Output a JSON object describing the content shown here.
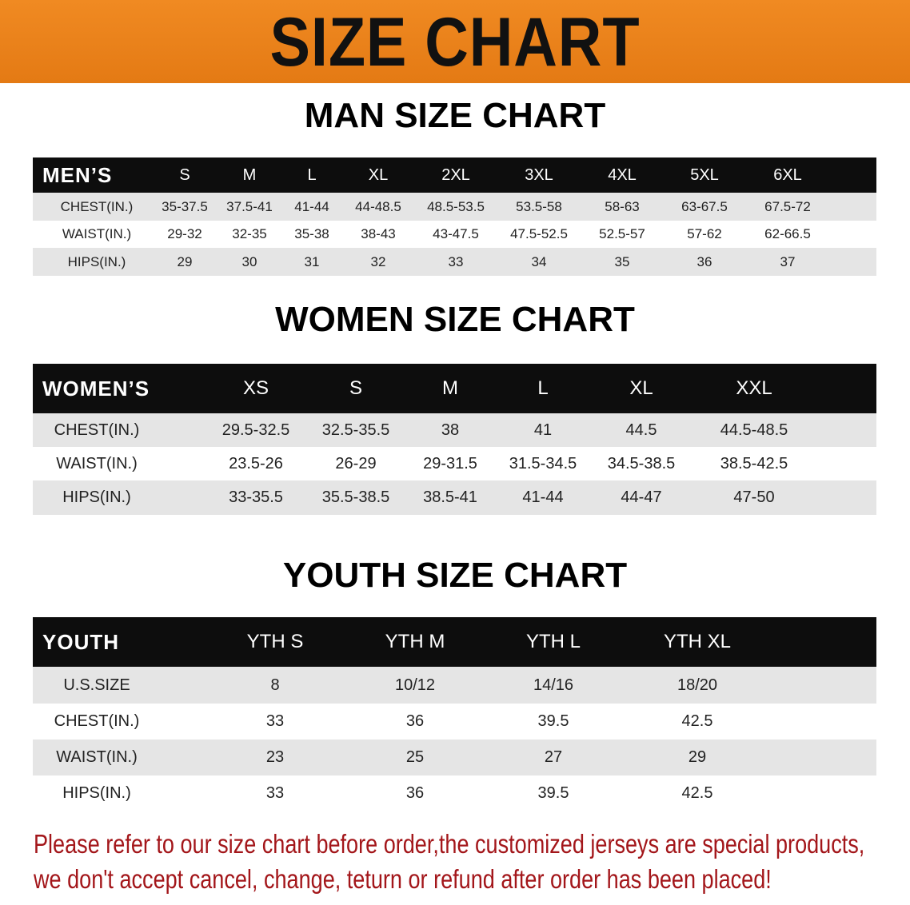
{
  "banner_title": "SIZE CHART",
  "men": {
    "title": "MAN SIZE CHART",
    "header": "MEN’S",
    "sizes": [
      "S",
      "M",
      "L",
      "XL",
      "2XL",
      "3XL",
      "4XL",
      "5XL",
      "6XL"
    ],
    "rows": [
      {
        "label": "CHEST(IN.)",
        "values": [
          "35-37.5",
          "37.5-41",
          "41-44",
          "44-48.5",
          "48.5-53.5",
          "53.5-58",
          "58-63",
          "63-67.5",
          "67.5-72"
        ]
      },
      {
        "label": "WAIST(IN.)",
        "values": [
          "29-32",
          "32-35",
          "35-38",
          "38-43",
          "43-47.5",
          "47.5-52.5",
          "52.5-57",
          "57-62",
          "62-66.5"
        ]
      },
      {
        "label": "HIPS(IN.)",
        "values": [
          "29",
          "30",
          "31",
          "32",
          "33",
          "34",
          "35",
          "36",
          "37"
        ]
      }
    ]
  },
  "women": {
    "title": "WOMEN SIZE CHART",
    "header": "WOMEN’S",
    "sizes": [
      "XS",
      "S",
      "M",
      "L",
      "XL",
      "XXL"
    ],
    "rows": [
      {
        "label": "CHEST(IN.)",
        "values": [
          "29.5-32.5",
          "32.5-35.5",
          "38",
          "41",
          "44.5",
          "44.5-48.5"
        ]
      },
      {
        "label": "WAIST(IN.)",
        "values": [
          "23.5-26",
          "26-29",
          "29-31.5",
          "31.5-34.5",
          "34.5-38.5",
          "38.5-42.5"
        ]
      },
      {
        "label": "HIPS(IN.)",
        "values": [
          "33-35.5",
          "35.5-38.5",
          "38.5-41",
          "41-44",
          "44-47",
          "47-50"
        ]
      }
    ]
  },
  "youth": {
    "title": "YOUTH SIZE CHART",
    "header": "YOUTH",
    "sizes": [
      "YTH S",
      "YTH M",
      "YTH L",
      "YTH XL"
    ],
    "rows": [
      {
        "label": "U.S.SIZE",
        "values": [
          "8",
          "10/12",
          "14/16",
          "18/20"
        ]
      },
      {
        "label": "CHEST(IN.)",
        "values": [
          "33",
          "36",
          "39.5",
          "42.5"
        ]
      },
      {
        "label": "WAIST(IN.)",
        "values": [
          "23",
          "25",
          "27",
          "29"
        ]
      },
      {
        "label": "HIPS(IN.)",
        "values": [
          "33",
          "36",
          "39.5",
          "42.5"
        ]
      }
    ]
  },
  "notice": {
    "line1": "Please refer to our size chart before order,the customized jerseys are special products,",
    "line2": "we don't accept cancel, change, teturn or refund after order has been placed!"
  },
  "colors": {
    "banner": "#e8801a",
    "header_bg": "#0d0d0d",
    "row_alt": "#e5e5e5",
    "notice": "#a3161a"
  }
}
